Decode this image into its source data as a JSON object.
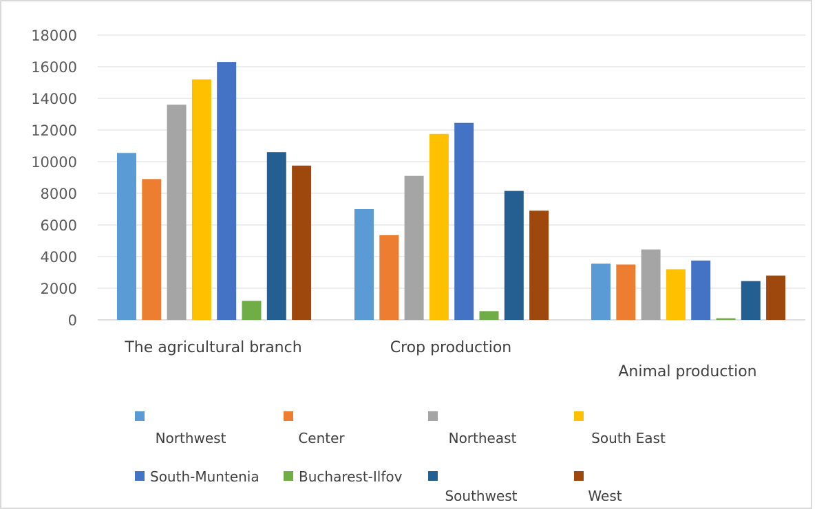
{
  "chart_data": {
    "type": "bar",
    "categories": [
      "The agricultural branch",
      "Crop production",
      "Animal production"
    ],
    "series": [
      {
        "name": "Northwest",
        "color": "#5b9bd5",
        "values": [
          10550,
          7000,
          3550
        ]
      },
      {
        "name": "Center",
        "color": "#ed7d31",
        "values": [
          8900,
          5350,
          3500
        ]
      },
      {
        "name": "Northeast",
        "color": "#a5a5a5",
        "values": [
          13600,
          9100,
          4450
        ]
      },
      {
        "name": "South East",
        "color": "#ffc000",
        "values": [
          15200,
          11750,
          3200
        ]
      },
      {
        "name": "South-Muntenia",
        "color": "#4472c4",
        "values": [
          16300,
          12450,
          3750
        ]
      },
      {
        "name": "Bucharest-Ilfov",
        "color": "#70ad47",
        "values": [
          1200,
          550,
          100
        ]
      },
      {
        "name": "Southwest",
        "color": "#255e91",
        "values": [
          10600,
          8150,
          2450
        ]
      },
      {
        "name": "West",
        "color": "#9e480e",
        "values": [
          9750,
          6900,
          2800
        ]
      }
    ],
    "y_ticks": [
      "0",
      "2000",
      "4000",
      "6000",
      "8000",
      "10000",
      "12000",
      "14000",
      "16000",
      "18000"
    ],
    "ylim": [
      0,
      18000
    ],
    "grid": true,
    "legend_position": "bottom"
  }
}
